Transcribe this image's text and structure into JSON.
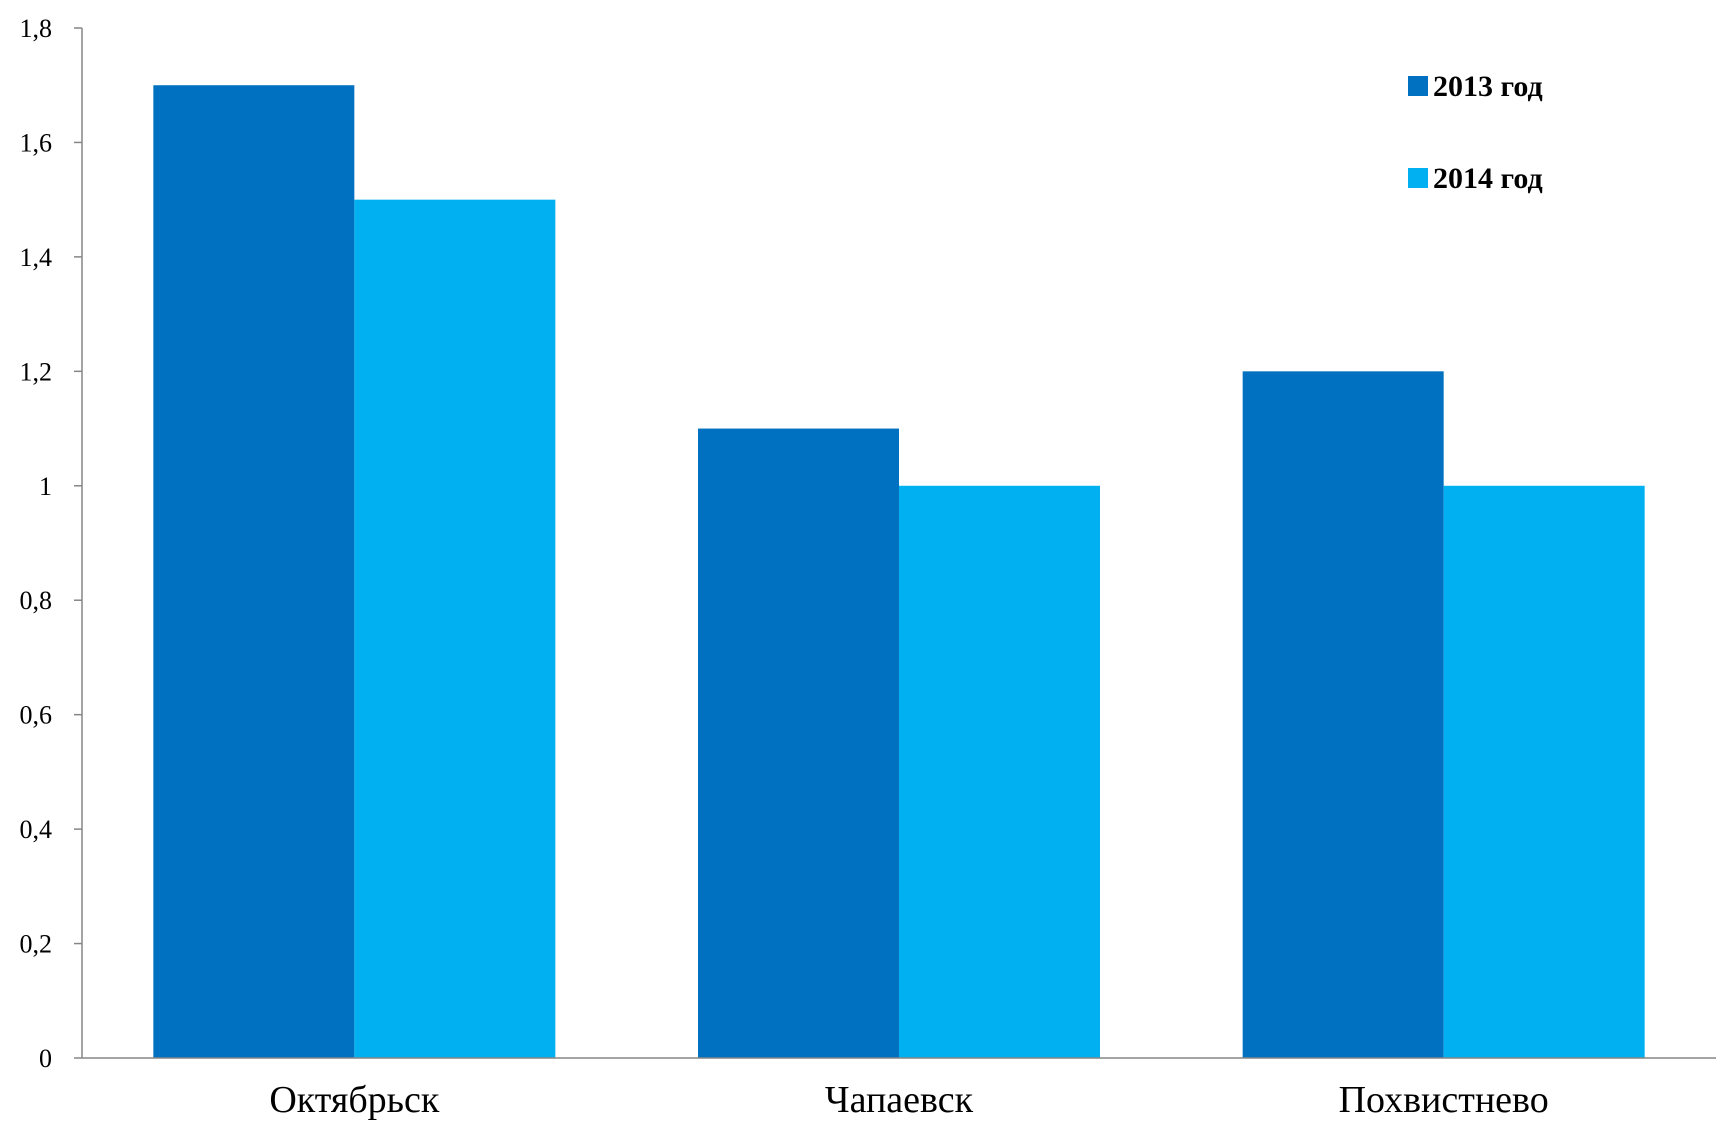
{
  "chart_data": {
    "type": "bar",
    "categories": [
      "Октябрьск",
      "Чапаевск",
      "Похвистнево"
    ],
    "series": [
      {
        "name": "2013 год",
        "values": [
          1.7,
          1.1,
          1.2
        ],
        "color": "#0070C0"
      },
      {
        "name": "2014 год",
        "values": [
          1.5,
          1.0,
          1.0
        ],
        "color": "#00B0F0"
      }
    ],
    "ylim": [
      0,
      1.8
    ],
    "y_ticks": [
      "0",
      "0,2",
      "0,4",
      "0,6",
      "0,8",
      "1",
      "1,2",
      "1,4",
      "1,6",
      "1,8"
    ],
    "title": "",
    "xlabel": "",
    "ylabel": "",
    "grid": false,
    "legend_position": "top-right"
  }
}
